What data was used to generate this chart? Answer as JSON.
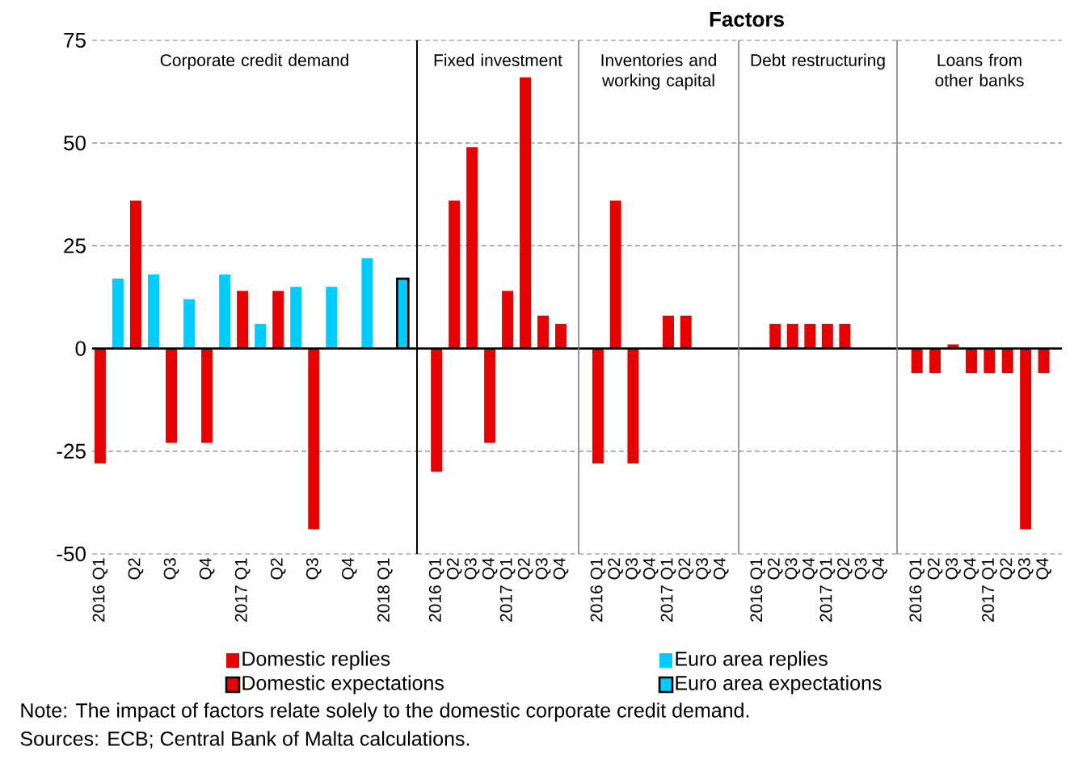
{
  "chart_data": [
    {
      "type": "bar",
      "title": "Corporate credit demand",
      "categories": [
        "2016 Q1",
        null,
        "Q2",
        null,
        "Q3",
        null,
        "Q4",
        null,
        "2017 Q1",
        null,
        "Q2",
        null,
        "Q3",
        null,
        "Q4",
        null,
        "2018 Q1",
        null
      ],
      "series": [
        {
          "name": "Domestic replies",
          "color": "#e60000",
          "values": [
            -28,
            null,
            36,
            null,
            -23,
            null,
            -23,
            null,
            14,
            null,
            14,
            null,
            -44,
            null,
            null,
            null,
            null,
            null
          ]
        },
        {
          "name": "Euro area replies",
          "color": "#00ccff",
          "values": [
            null,
            17,
            null,
            18,
            null,
            12,
            null,
            18,
            null,
            6,
            null,
            15,
            null,
            15,
            null,
            22,
            null,
            null
          ]
        },
        {
          "name": "Domestic expectations",
          "color": "#e60000",
          "values": [
            null,
            null,
            null,
            null,
            null,
            null,
            null,
            null,
            null,
            null,
            null,
            null,
            null,
            null,
            null,
            null,
            null,
            null
          ]
        },
        {
          "name": "Euro area expectations",
          "color": "#00ccff",
          "values": [
            null,
            null,
            null,
            null,
            null,
            null,
            null,
            null,
            null,
            null,
            null,
            null,
            null,
            null,
            null,
            null,
            null,
            17
          ]
        }
      ],
      "ylim": [
        -50,
        75
      ],
      "yticks": [
        -50,
        -25,
        0,
        25,
        50,
        75
      ],
      "grid": "y",
      "legend": "bottom",
      "annotations": [
        "Note: The impact of factors relate solely to the domestic corporate credit demand.",
        "Sources: ECB; Central Bank of Malta calculations."
      ]
    },
    {
      "type": "bar",
      "title": "Fixed investment",
      "categories": [
        "2016 Q1",
        "Q2",
        "Q3",
        "Q4",
        "2017 Q1",
        "Q2",
        "Q3",
        "Q4"
      ],
      "series": [
        {
          "color": "#e60000",
          "values": [
            -30,
            36,
            49,
            -23,
            14,
            66,
            8,
            6
          ]
        }
      ],
      "ylim": [
        -50,
        75
      ],
      "yticks": [
        -50,
        -25,
        0,
        25,
        50,
        75
      ],
      "grid": "y",
      "tick_labels": "x",
      "annotations": [
        "Factors"
      ]
    },
    {
      "type": "bar",
      "title": "Inventories and working capital",
      "categories": [
        "2016 Q1",
        "Q2",
        "Q3",
        "Q4",
        "2017 Q1",
        "Q2",
        "Q3",
        "Q4"
      ],
      "series": [
        {
          "color": "#e60000",
          "values": [
            -28,
            36,
            -28,
            null,
            8,
            8,
            null,
            null
          ]
        }
      ],
      "ylim": [
        -50,
        75
      ],
      "yticks": [
        -50,
        -25,
        0,
        25,
        50,
        75
      ],
      "grid": "y",
      "tick_labels": "x"
    },
    {
      "type": "bar",
      "title": "Debt restructuring",
      "categories": [
        "2016 Q1",
        "Q2",
        "Q3",
        "Q4",
        "2017 Q1",
        "Q2",
        "Q3",
        "Q4"
      ],
      "series": [
        {
          "color": "#e60000",
          "values": [
            null,
            6,
            6,
            6,
            6,
            6,
            null,
            null
          ]
        }
      ],
      "ylim": [
        -50,
        75
      ],
      "yticks": [
        -50,
        -25,
        0,
        25,
        50,
        75
      ],
      "grid": "y",
      "tick_labels": "x"
    },
    {
      "type": "bar",
      "title": "Loans from other banks",
      "categories": [
        "2016 Q1",
        "Q2",
        "Q3",
        "Q4",
        "2017 Q1",
        "Q2",
        "Q3",
        "Q4"
      ],
      "series": [
        {
          "color": "#e60000",
          "values": [
            -6,
            -6,
            1,
            -6,
            -6,
            -6,
            -44,
            -6
          ]
        }
      ],
      "ylim": [
        -50,
        75
      ],
      "yticks": [
        -50,
        -25,
        0,
        25,
        50,
        75
      ],
      "grid": "y",
      "tick_labels": "x"
    }
  ]
}
